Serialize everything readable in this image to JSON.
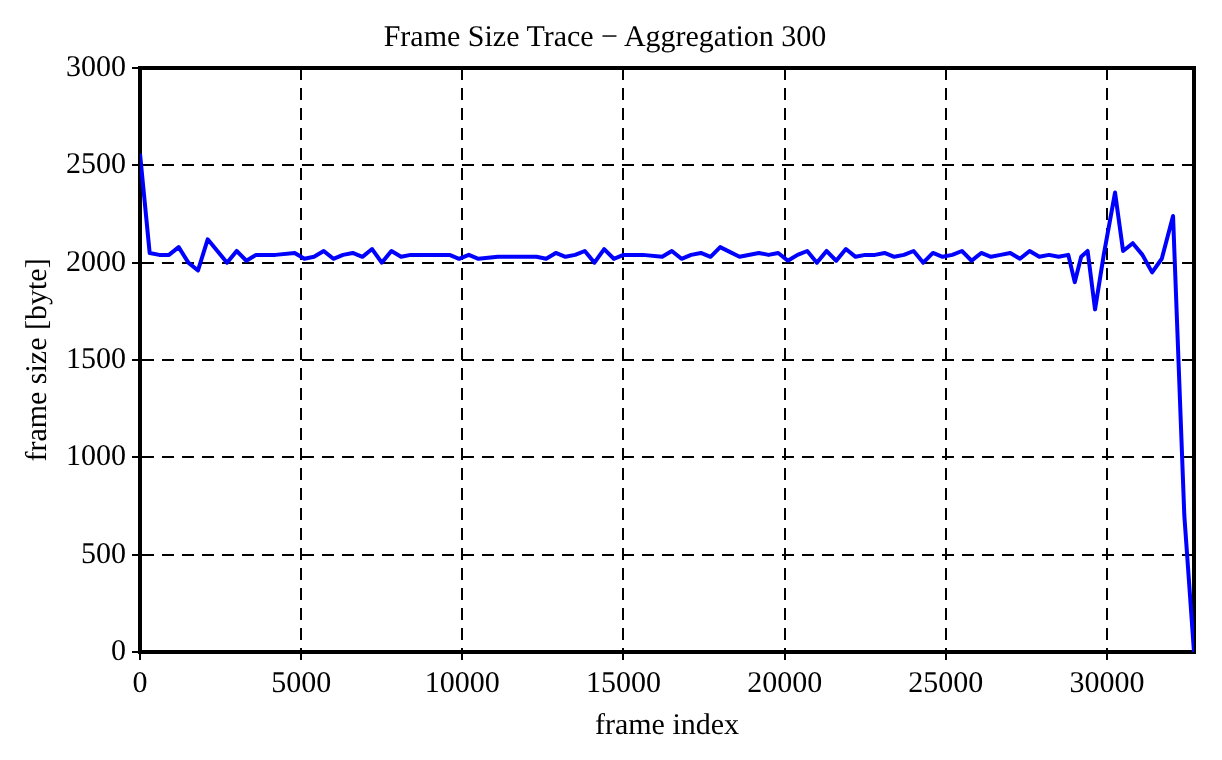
{
  "chart_data": {
    "type": "line",
    "title": "Frame Size Trace − Aggregation 300",
    "xlabel": "frame index",
    "ylabel": "frame size [byte]",
    "x": [
      0,
      300,
      600,
      900,
      1200,
      1500,
      1800,
      2100,
      2400,
      2700,
      3000,
      3300,
      3600,
      4200,
      4800,
      5100,
      5400,
      5700,
      6000,
      6300,
      6600,
      6900,
      7200,
      7500,
      7800,
      8100,
      8400,
      9000,
      9600,
      9900,
      10200,
      10500,
      11100,
      11700,
      12300,
      12600,
      12900,
      13200,
      13500,
      13800,
      14100,
      14400,
      14700,
      15000,
      15600,
      16200,
      16500,
      16800,
      17100,
      17400,
      17700,
      18000,
      18600,
      19200,
      19500,
      19800,
      20100,
      20400,
      20700,
      21000,
      21300,
      21600,
      21900,
      22200,
      22500,
      22800,
      23100,
      23400,
      23700,
      24000,
      24300,
      24600,
      24900,
      25200,
      25500,
      25800,
      26100,
      26400,
      26700,
      27000,
      27300,
      27600,
      27900,
      28200,
      28500,
      28800,
      29000,
      29200,
      29400,
      29630,
      29900,
      30250,
      30500,
      30800,
      31100,
      31400,
      31700,
      32050,
      32400,
      32700
    ],
    "series": [
      {
        "color": "#0000ff",
        "values": [
          2560,
          2050,
          2040,
          2040,
          2080,
          2000,
          1960,
          2120,
          2060,
          2000,
          2060,
          2010,
          2040,
          2040,
          2050,
          2020,
          2030,
          2060,
          2020,
          2040,
          2050,
          2030,
          2070,
          2000,
          2060,
          2030,
          2040,
          2040,
          2040,
          2020,
          2040,
          2020,
          2030,
          2030,
          2030,
          2020,
          2050,
          2030,
          2040,
          2060,
          2000,
          2070,
          2020,
          2040,
          2040,
          2030,
          2060,
          2020,
          2040,
          2050,
          2030,
          2080,
          2030,
          2050,
          2040,
          2050,
          2010,
          2040,
          2060,
          2000,
          2060,
          2010,
          2070,
          2030,
          2040,
          2040,
          2050,
          2030,
          2040,
          2060,
          2000,
          2050,
          2030,
          2040,
          2060,
          2010,
          2050,
          2030,
          2040,
          2050,
          2020,
          2060,
          2030,
          2040,
          2030,
          2040,
          1900,
          2030,
          2060,
          1760,
          2040,
          2360,
          2060,
          2100,
          2040,
          1950,
          2020,
          2240,
          700,
          0
        ]
      }
    ],
    "xlim": [
      0,
      32700
    ],
    "xticks": [
      0,
      5000,
      10000,
      15000,
      20000,
      25000,
      30000
    ],
    "ylim": [
      0,
      3000
    ],
    "yticks": [
      0,
      500,
      1000,
      1500,
      2000,
      2500,
      3000
    ],
    "grid": true,
    "line_style": "solid",
    "marker": "none"
  }
}
